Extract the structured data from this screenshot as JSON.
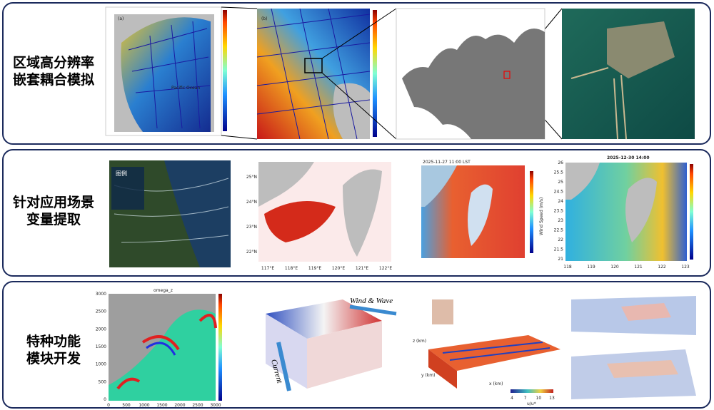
{
  "rows": [
    {
      "label": [
        "区域高分辨率",
        "嵌套耦合模拟"
      ],
      "panels": {
        "a_tag": "(a)",
        "a_ocean": "Pacific Ocean",
        "b_tag": "(b)"
      }
    },
    {
      "label": [
        "针对应用场景",
        "变量提取"
      ],
      "panels": {
        "legend_title": "图例",
        "map_xticks": [
          "117°E",
          "118°E",
          "119°E",
          "120°E",
          "121°E",
          "122°E"
        ],
        "map_yticks": [
          "25°N",
          "24°N",
          "23°N",
          "22°N"
        ],
        "wind_time": "2025-11-27 11:00 LST",
        "wind_cbar": "Wind Speed (m/s)",
        "wave_time": "2025-12-30 14:00",
        "wave_xticks": [
          "118",
          "119",
          "120",
          "121",
          "122",
          "123"
        ],
        "wave_yticks": [
          "26",
          "25.5",
          "25",
          "24.5",
          "24",
          "23.5",
          "23",
          "22.5",
          "22",
          "21.5",
          "21"
        ]
      }
    },
    {
      "label": [
        "特种功能",
        "模块开发"
      ],
      "panels": {
        "omega_title": "omega_z",
        "omega_xticks": [
          "0",
          "500",
          "1000",
          "1500",
          "2000",
          "2500",
          "3000"
        ],
        "omega_yticks": [
          "3000",
          "2500",
          "2000",
          "1500",
          "1000",
          "500",
          "0"
        ],
        "wind_wave": "Wind & Wave",
        "current": "Current",
        "x_label": "x (km)",
        "y_label": "y (km)",
        "z_label": "z (km)",
        "cbar_label": "u/u*",
        "cbar_ticks": [
          "4",
          "7",
          "10",
          "13"
        ]
      }
    }
  ]
}
